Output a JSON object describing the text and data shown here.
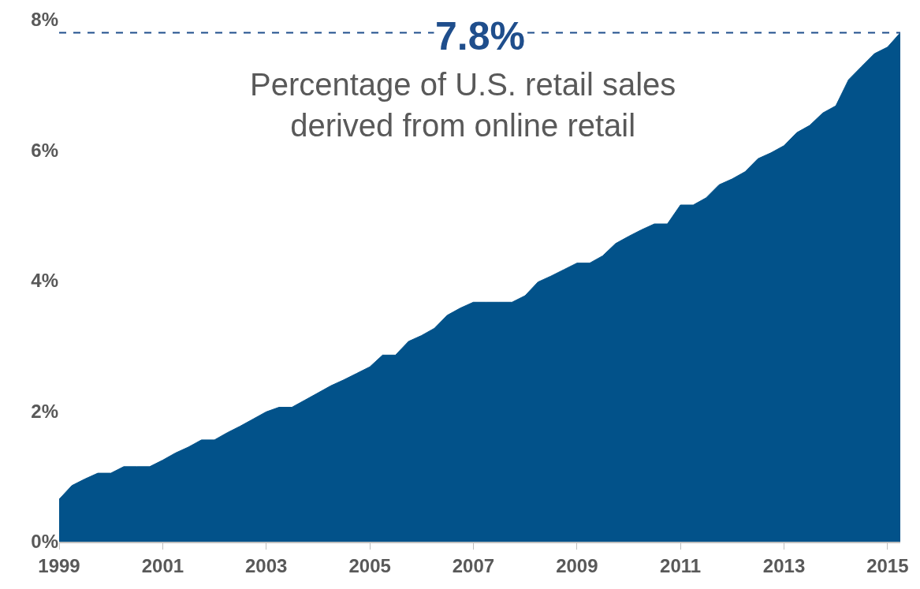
{
  "chart_data": {
    "type": "area",
    "color": "#02528a",
    "x": [
      "1999-01",
      "1999-04",
      "1999-07",
      "1999-10",
      "2000-01",
      "2000-04",
      "2000-07",
      "2000-10",
      "2001-01",
      "2001-04",
      "2001-07",
      "2001-10",
      "2002-01",
      "2002-04",
      "2002-07",
      "2002-10",
      "2003-01",
      "2003-04",
      "2003-07",
      "2003-10",
      "2004-01",
      "2004-04",
      "2004-07",
      "2004-10",
      "2005-01",
      "2005-04",
      "2005-07",
      "2005-10",
      "2006-01",
      "2006-04",
      "2006-07",
      "2006-10",
      "2007-01",
      "2007-04",
      "2007-07",
      "2007-10",
      "2008-01",
      "2008-04",
      "2008-07",
      "2008-10",
      "2009-01",
      "2009-04",
      "2009-07",
      "2009-10",
      "2010-01",
      "2010-04",
      "2010-07",
      "2010-10",
      "2011-01",
      "2011-04",
      "2011-07",
      "2011-10",
      "2012-01",
      "2012-04",
      "2012-07",
      "2012-10",
      "2013-01",
      "2013-04",
      "2013-07",
      "2013-10",
      "2014-01",
      "2014-04",
      "2014-07",
      "2014-10",
      "2015-01",
      "2015-04"
    ],
    "values": [
      0.65,
      0.86,
      0.96,
      1.05,
      1.05,
      1.15,
      1.15,
      1.15,
      1.25,
      1.36,
      1.45,
      1.56,
      1.56,
      1.67,
      1.77,
      1.88,
      1.99,
      2.06,
      2.06,
      2.17,
      2.28,
      2.39,
      2.48,
      2.58,
      2.68,
      2.86,
      2.86,
      3.07,
      3.16,
      3.27,
      3.47,
      3.58,
      3.67,
      3.67,
      3.67,
      3.67,
      3.77,
      3.98,
      4.07,
      4.17,
      4.27,
      4.27,
      4.38,
      4.57,
      4.68,
      4.78,
      4.87,
      4.87,
      5.16,
      5.16,
      5.27,
      5.47,
      5.56,
      5.67,
      5.87,
      5.96,
      6.07,
      6.27,
      6.38,
      6.57,
      6.68,
      7.08,
      7.28,
      7.48,
      7.58,
      7.8
    ],
    "xlim": [
      "1999-01",
      "2015-04"
    ],
    "xticks": [
      {
        "value": "1999-01",
        "label": "1999"
      },
      {
        "value": "2001-01",
        "label": "2001"
      },
      {
        "value": "2003-01",
        "label": "2003"
      },
      {
        "value": "2005-01",
        "label": "2005"
      },
      {
        "value": "2007-01",
        "label": "2007"
      },
      {
        "value": "2009-01",
        "label": "2009"
      },
      {
        "value": "2011-01",
        "label": "2011"
      },
      {
        "value": "2013-01",
        "label": "2013"
      },
      {
        "value": "2015-01",
        "label": "2015"
      }
    ],
    "ylim": [
      0,
      8
    ],
    "yticks": [
      {
        "value": 0,
        "label": "0%"
      },
      {
        "value": 2,
        "label": "2%"
      },
      {
        "value": 4,
        "label": "4%"
      },
      {
        "value": 6,
        "label": "6%"
      },
      {
        "value": 8,
        "label": "8%"
      }
    ],
    "ref_lines": [
      {
        "axis": "y",
        "value": 7.8,
        "label": "7.8%",
        "color": "#1f4e8c",
        "line_style": "dashed"
      }
    ],
    "annotations": [
      "Percentage of U.S. retail sales\nderived from online retail"
    ]
  }
}
